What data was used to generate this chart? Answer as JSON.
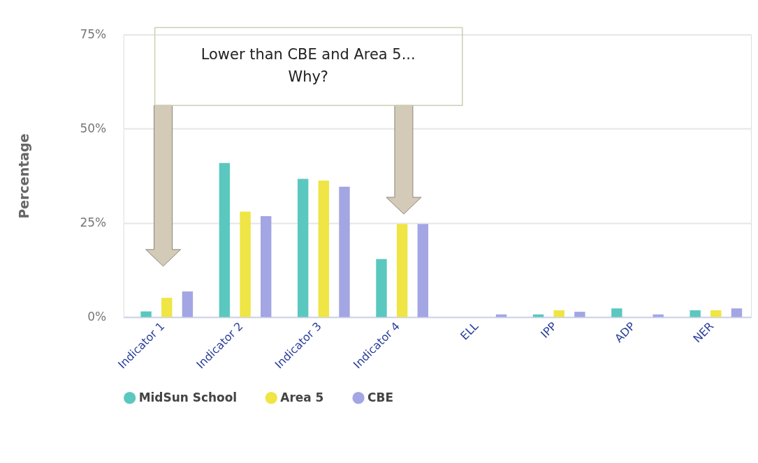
{
  "chart_data": {
    "type": "bar",
    "ylabel": "Percentage",
    "categories": [
      "Indicator 1",
      "Indicator 2",
      "Indicator 3",
      "Indicator 4",
      "ELL",
      "IPP",
      "ADP",
      "NER"
    ],
    "series": [
      {
        "name": "MidSun School",
        "color": "#5bc8bf",
        "values": [
          1.5,
          40.9,
          36.7,
          15.4,
          0,
          0.7,
          2.3,
          1.8
        ]
      },
      {
        "name": "Area 5",
        "color": "#efe544",
        "values": [
          5.1,
          28.0,
          36.2,
          24.7,
          0,
          1.8,
          0,
          1.8
        ]
      },
      {
        "name": "CBE",
        "color": "#a3a6e3",
        "values": [
          6.8,
          26.8,
          34.6,
          24.7,
          0.7,
          1.4,
          0.7,
          2.3
        ]
      }
    ],
    "ylim": [
      0,
      75
    ],
    "yticks": [
      {
        "value": 0,
        "label": "0%"
      },
      {
        "value": 25,
        "label": "25%"
      },
      {
        "value": 50,
        "label": "50%"
      },
      {
        "value": 75,
        "label": "75%"
      }
    ],
    "grid": "y",
    "legend": "bottom",
    "annotations": [
      "Lower than CBE and Area 5...\nWhy?"
    ]
  }
}
